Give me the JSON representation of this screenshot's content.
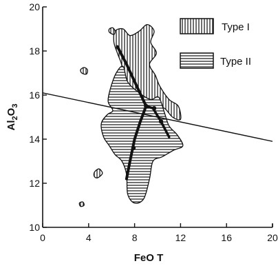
{
  "chart_data": {
    "type": "scatter",
    "title": "",
    "xlabel": "FeO T",
    "ylabel": "Al2O3",
    "ylabel_parts": {
      "base": "Al",
      "sub1": "2",
      "mid": "O",
      "sub2": "3"
    },
    "xlim": [
      0,
      20
    ],
    "ylim": [
      10,
      20
    ],
    "xticks": [
      0,
      4,
      8,
      12,
      16,
      20
    ],
    "yticks": [
      10,
      12,
      14,
      16,
      18,
      20
    ],
    "grid": false,
    "legend_placement": "top-right",
    "series": [
      {
        "name": "Type I",
        "pattern": "vertical-hatch",
        "regions": [
          [
            [
              6.3,
              18.9
            ],
            [
              7.0,
              19.0
            ],
            [
              7.6,
              18.7
            ],
            [
              8.4,
              18.9
            ],
            [
              9.1,
              19.2
            ],
            [
              9.7,
              18.9
            ],
            [
              9.4,
              18.4
            ],
            [
              9.9,
              17.9
            ],
            [
              9.3,
              17.4
            ],
            [
              9.8,
              16.9
            ],
            [
              10.2,
              16.4
            ],
            [
              11.0,
              15.8
            ],
            [
              11.8,
              15.5
            ],
            [
              12.0,
              14.9
            ],
            [
              11.3,
              15.0
            ],
            [
              10.6,
              15.4
            ],
            [
              9.8,
              15.5
            ],
            [
              9.0,
              15.6
            ],
            [
              8.2,
              15.8
            ],
            [
              7.4,
              16.1
            ],
            [
              6.8,
              16.6
            ],
            [
              6.9,
              17.3
            ],
            [
              6.5,
              17.9
            ],
            [
              6.2,
              18.4
            ]
          ],
          [
            [
              5.8,
              18.85
            ],
            [
              6.2,
              18.75
            ],
            [
              6.3,
              18.9
            ],
            [
              6.1,
              19.05
            ],
            [
              5.8,
              19.0
            ]
          ],
          [
            [
              3.4,
              17.0
            ],
            [
              3.8,
              16.95
            ],
            [
              3.9,
              17.15
            ],
            [
              3.6,
              17.25
            ],
            [
              3.3,
              17.15
            ]
          ],
          [
            [
              4.5,
              12.5
            ],
            [
              4.9,
              12.65
            ],
            [
              5.2,
              12.45
            ],
            [
              4.8,
              12.25
            ],
            [
              4.5,
              12.3
            ]
          ],
          [
            [
              3.2,
              11.1
            ],
            [
              3.5,
              11.15
            ],
            [
              3.6,
              11.0
            ],
            [
              3.3,
              10.95
            ]
          ]
        ]
      },
      {
        "name": "Type II",
        "pattern": "horizontal-hatch",
        "regions": [
          [
            [
              6.4,
              17.0
            ],
            [
              7.0,
              17.3
            ],
            [
              7.4,
              16.6
            ],
            [
              8.4,
              16.1
            ],
            [
              9.4,
              15.8
            ],
            [
              10.1,
              15.9
            ],
            [
              10.6,
              15.2
            ],
            [
              11.0,
              14.6
            ],
            [
              11.7,
              14.2
            ],
            [
              12.2,
              13.7
            ],
            [
              11.4,
              13.5
            ],
            [
              10.4,
              13.2
            ],
            [
              9.6,
              13.0
            ],
            [
              9.3,
              12.2
            ],
            [
              8.8,
              11.3
            ],
            [
              8.0,
              11.1
            ],
            [
              7.4,
              11.5
            ],
            [
              7.3,
              12.4
            ],
            [
              6.9,
              13.0
            ],
            [
              6.3,
              13.3
            ],
            [
              5.8,
              13.7
            ],
            [
              5.3,
              14.1
            ],
            [
              5.1,
              14.7
            ],
            [
              5.6,
              15.1
            ],
            [
              6.1,
              15.3
            ],
            [
              5.7,
              15.7
            ],
            [
              5.9,
              16.3
            ]
          ]
        ]
      }
    ],
    "trend_line": {
      "points": [
        [
          6.5,
          18.2
        ],
        [
          7.3,
          17.4
        ],
        [
          8.1,
          16.5
        ],
        [
          9.0,
          15.5
        ],
        [
          8.5,
          14.8
        ],
        [
          8.0,
          14.0
        ],
        [
          7.6,
          13.0
        ],
        [
          7.3,
          12.2
        ]
      ],
      "branch": [
        [
          9.0,
          15.5
        ],
        [
          9.6,
          15.4
        ],
        [
          10.3,
          14.8
        ],
        [
          11.0,
          14.1
        ]
      ],
      "markers": [
        [
          9.0,
          15.5
        ],
        [
          9.7,
          15.4
        ],
        [
          10.3,
          14.8
        ],
        [
          7.9,
          13.6
        ]
      ]
    },
    "reference_line": {
      "points": [
        [
          0,
          16.1
        ],
        [
          20,
          13.9
        ]
      ]
    }
  },
  "legend": {
    "items": [
      {
        "label": "Type I",
        "pattern": "vertical-hatch"
      },
      {
        "label": "Type II",
        "pattern": "horizontal-hatch"
      }
    ]
  },
  "colors": {
    "ink": "#111111",
    "background": "#ffffff"
  }
}
